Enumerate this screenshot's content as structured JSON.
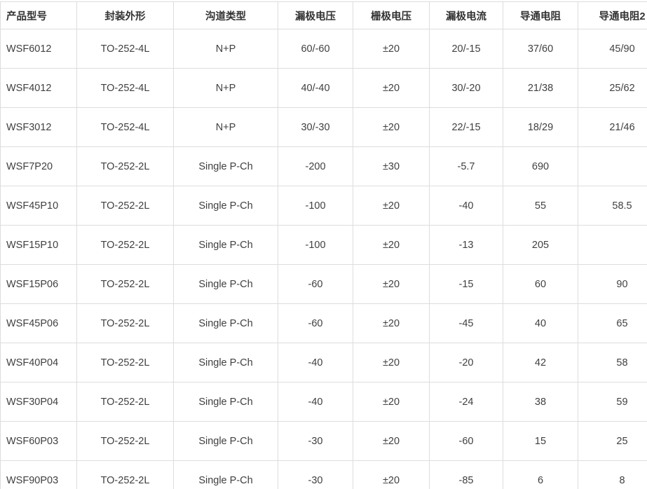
{
  "colors": {
    "background": "#ffffff",
    "border": "#dddddd",
    "header_text": "#333333",
    "cell_text": "#404040"
  },
  "table": {
    "columns": [
      "产品型号",
      "封装外形",
      "沟道类型",
      "漏极电压",
      "栅极电压",
      "漏极电流",
      "导通电阻",
      "导通电阻2"
    ],
    "rows": [
      [
        "WSF6012",
        "TO-252-4L",
        "N+P",
        "60/-60",
        "±20",
        "20/-15",
        "37/60",
        "45/90"
      ],
      [
        "WSF4012",
        "TO-252-4L",
        "N+P",
        "40/-40",
        "±20",
        "30/-20",
        "21/38",
        "25/62"
      ],
      [
        "WSF3012",
        "TO-252-4L",
        "N+P",
        "30/-30",
        "±20",
        "22/-15",
        "18/29",
        "21/46"
      ],
      [
        "WSF7P20",
        "TO-252-2L",
        "Single P-Ch",
        "-200",
        "±30",
        "-5.7",
        "690",
        ""
      ],
      [
        "WSF45P10",
        "TO-252-2L",
        "Single P-Ch",
        "-100",
        "±20",
        "-40",
        "55",
        "58.5"
      ],
      [
        "WSF15P10",
        "TO-252-2L",
        "Single P-Ch",
        "-100",
        "±20",
        "-13",
        "205",
        ""
      ],
      [
        "WSF15P06",
        "TO-252-2L",
        "Single P-Ch",
        "-60",
        "±20",
        "-15",
        "60",
        "90"
      ],
      [
        "WSF45P06",
        "TO-252-2L",
        "Single P-Ch",
        "-60",
        "±20",
        "-45",
        "40",
        "65"
      ],
      [
        "WSF40P04",
        "TO-252-2L",
        "Single P-Ch",
        "-40",
        "±20",
        "-20",
        "42",
        "58"
      ],
      [
        "WSF30P04",
        "TO-252-2L",
        "Single P-Ch",
        "-40",
        "±20",
        "-24",
        "38",
        "59"
      ],
      [
        "WSF60P03",
        "TO-252-2L",
        "Single P-Ch",
        "-30",
        "±20",
        "-60",
        "15",
        "25"
      ],
      [
        "WSF90P03",
        "TO-252-2L",
        "Single P-Ch",
        "-30",
        "±20",
        "-85",
        "6",
        "8"
      ]
    ]
  }
}
